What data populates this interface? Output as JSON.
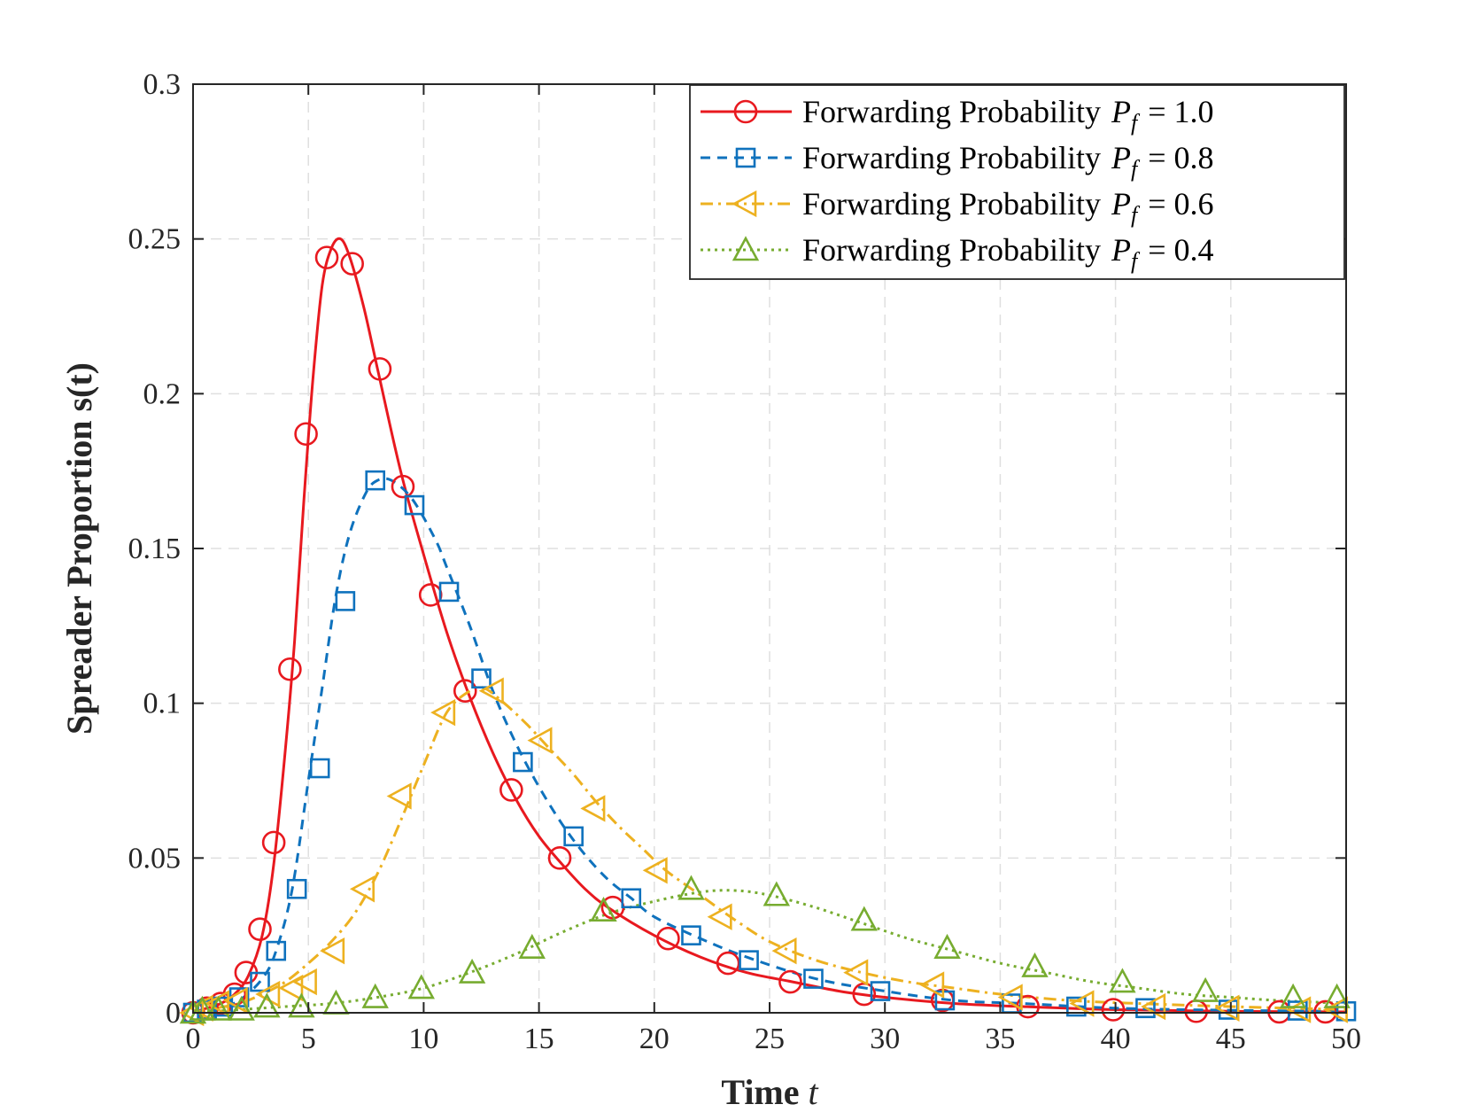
{
  "chart_data": {
    "type": "line",
    "xlabel": "Time",
    "xlabel_var": "t",
    "ylabel": "Spreader Proportion s(t)",
    "xlim": [
      0,
      50
    ],
    "ylim": [
      0,
      0.3
    ],
    "xticks": [
      0,
      5,
      10,
      15,
      20,
      25,
      30,
      35,
      40,
      45,
      50
    ],
    "yticks": [
      0,
      0.05,
      0.1,
      0.15,
      0.2,
      0.25,
      0.3
    ],
    "ytick_labels": [
      "0",
      "0.05",
      "0.1",
      "0.15",
      "0.2",
      "0.25",
      "0.3"
    ],
    "grid": true,
    "legend_position": "top-right",
    "series": [
      {
        "name": "Forwarding Probability P_f = 1.0",
        "legend_text": "Forwarding Probability",
        "legend_symbol": "P",
        "legend_subscript": "f",
        "legend_value": "= 1.0",
        "color": "#e8191f",
        "line": "solid",
        "marker": "circle",
        "curve": [
          [
            0,
            0
          ],
          [
            0.6,
            0.0015
          ],
          [
            1.2,
            0.003
          ],
          [
            1.8,
            0.006
          ],
          [
            2.4,
            0.012
          ],
          [
            3,
            0.025
          ],
          [
            3.5,
            0.048
          ],
          [
            4,
            0.085
          ],
          [
            4.4,
            0.12
          ],
          [
            4.8,
            0.165
          ],
          [
            5.2,
            0.205
          ],
          [
            5.6,
            0.235
          ],
          [
            6,
            0.247
          ],
          [
            6.4,
            0.25
          ],
          [
            6.8,
            0.244
          ],
          [
            7.4,
            0.228
          ],
          [
            8,
            0.208
          ],
          [
            9,
            0.175
          ],
          [
            10,
            0.148
          ],
          [
            11,
            0.123
          ],
          [
            12,
            0.102
          ],
          [
            13,
            0.084
          ],
          [
            14,
            0.069
          ],
          [
            15,
            0.057
          ],
          [
            16,
            0.048
          ],
          [
            17,
            0.04
          ],
          [
            18,
            0.034
          ],
          [
            20,
            0.025
          ],
          [
            22,
            0.018
          ],
          [
            24,
            0.013
          ],
          [
            26,
            0.01
          ],
          [
            28,
            0.007
          ],
          [
            30,
            0.005
          ],
          [
            33,
            0.003
          ],
          [
            36,
            0.002
          ],
          [
            40,
            0.001
          ],
          [
            45,
            0.0005
          ],
          [
            50,
            0.0003
          ]
        ],
        "markers": [
          [
            0,
            0
          ],
          [
            0.6,
            0.0015
          ],
          [
            1.2,
            0.003
          ],
          [
            1.8,
            0.006
          ],
          [
            2.3,
            0.013
          ],
          [
            2.9,
            0.027
          ],
          [
            3.5,
            0.055
          ],
          [
            4.2,
            0.111
          ],
          [
            4.9,
            0.187
          ],
          [
            5.8,
            0.244
          ],
          [
            6.9,
            0.242
          ],
          [
            8.1,
            0.208
          ],
          [
            9.1,
            0.17
          ],
          [
            10.3,
            0.135
          ],
          [
            11.8,
            0.104
          ],
          [
            13.8,
            0.072
          ],
          [
            15.9,
            0.05
          ],
          [
            18.2,
            0.034
          ],
          [
            20.6,
            0.024
          ],
          [
            23.2,
            0.016
          ],
          [
            25.9,
            0.01
          ],
          [
            29.1,
            0.006
          ],
          [
            32.5,
            0.004
          ],
          [
            36.2,
            0.002
          ],
          [
            39.9,
            0.001
          ],
          [
            43.5,
            0.0005
          ],
          [
            47.1,
            0.0003
          ],
          [
            49.1,
            0.0003
          ]
        ]
      },
      {
        "name": "Forwarding Probability P_f = 0.8",
        "legend_text": "Forwarding Probability",
        "legend_symbol": "P",
        "legend_subscript": "f",
        "legend_value": "= 0.8",
        "color": "#0f72bd",
        "line": "dashed",
        "marker": "square",
        "curve": [
          [
            0,
            0
          ],
          [
            1,
            0.001
          ],
          [
            2,
            0.004
          ],
          [
            3,
            0.011
          ],
          [
            3.6,
            0.02
          ],
          [
            4.3,
            0.04
          ],
          [
            5,
            0.075
          ],
          [
            5.6,
            0.105
          ],
          [
            6.2,
            0.135
          ],
          [
            6.8,
            0.155
          ],
          [
            7.5,
            0.168
          ],
          [
            8,
            0.172
          ],
          [
            8.6,
            0.172
          ],
          [
            9.5,
            0.166
          ],
          [
            10.5,
            0.153
          ],
          [
            11,
            0.144
          ],
          [
            12,
            0.125
          ],
          [
            13,
            0.104
          ],
          [
            14,
            0.087
          ],
          [
            15,
            0.073
          ],
          [
            16,
            0.061
          ],
          [
            17,
            0.051
          ],
          [
            18,
            0.043
          ],
          [
            19,
            0.037
          ],
          [
            20,
            0.031
          ],
          [
            22,
            0.024
          ],
          [
            24,
            0.018
          ],
          [
            27,
            0.011
          ],
          [
            30,
            0.007
          ],
          [
            33,
            0.004
          ],
          [
            36,
            0.003
          ],
          [
            40,
            0.0015
          ],
          [
            45,
            0.0008
          ],
          [
            50,
            0.0005
          ]
        ],
        "markers": [
          [
            0,
            0
          ],
          [
            0.6,
            0.001
          ],
          [
            1.3,
            0.002
          ],
          [
            2,
            0.005
          ],
          [
            2.9,
            0.01
          ],
          [
            3.6,
            0.02
          ],
          [
            4.5,
            0.04
          ],
          [
            5.5,
            0.079
          ],
          [
            6.6,
            0.133
          ],
          [
            7.9,
            0.172
          ],
          [
            9.6,
            0.164
          ],
          [
            11.1,
            0.136
          ],
          [
            12.5,
            0.108
          ],
          [
            14.3,
            0.081
          ],
          [
            16.5,
            0.057
          ],
          [
            19,
            0.037
          ],
          [
            21.6,
            0.025
          ],
          [
            24.1,
            0.017
          ],
          [
            26.9,
            0.011
          ],
          [
            29.8,
            0.007
          ],
          [
            32.6,
            0.004
          ],
          [
            35.5,
            0.003
          ],
          [
            38.3,
            0.002
          ],
          [
            41.3,
            0.0015
          ],
          [
            44.9,
            0.001
          ],
          [
            47.9,
            0.0007
          ],
          [
            50,
            0.0005
          ]
        ]
      },
      {
        "name": "Forwarding Probability P_f = 0.6",
        "legend_text": "Forwarding Probability",
        "legend_symbol": "P",
        "legend_subscript": "f",
        "legend_value": "= 0.6",
        "color": "#edb120",
        "line": "dashdot",
        "marker": "triangle-left",
        "curve": [
          [
            0,
            0
          ],
          [
            1,
            0.0015
          ],
          [
            2,
            0.003
          ],
          [
            3,
            0.006
          ],
          [
            4,
            0.01
          ],
          [
            5,
            0.016
          ],
          [
            6,
            0.023
          ],
          [
            7,
            0.032
          ],
          [
            8,
            0.045
          ],
          [
            9,
            0.062
          ],
          [
            10,
            0.08
          ],
          [
            11,
            0.097
          ],
          [
            12,
            0.104
          ],
          [
            12.6,
            0.105
          ],
          [
            13.5,
            0.1
          ],
          [
            14.5,
            0.093
          ],
          [
            15.5,
            0.085
          ],
          [
            16.5,
            0.077
          ],
          [
            17.5,
            0.068
          ],
          [
            18.5,
            0.06
          ],
          [
            19.5,
            0.053
          ],
          [
            20.5,
            0.046
          ],
          [
            22,
            0.038
          ],
          [
            23.5,
            0.03
          ],
          [
            25,
            0.023
          ],
          [
            27,
            0.017
          ],
          [
            29,
            0.013
          ],
          [
            31,
            0.01
          ],
          [
            33,
            0.008
          ],
          [
            35,
            0.006
          ],
          [
            38,
            0.004
          ],
          [
            41,
            0.003
          ],
          [
            45,
            0.002
          ],
          [
            50,
            0.001
          ]
        ],
        "markers": [
          [
            0,
            0
          ],
          [
            0.4,
            0.0015
          ],
          [
            1.1,
            0.003
          ],
          [
            1.9,
            0.004
          ],
          [
            3.3,
            0.006
          ],
          [
            4.3,
            0.008
          ],
          [
            4.9,
            0.01
          ],
          [
            6.1,
            0.02
          ],
          [
            7.4,
            0.04
          ],
          [
            9,
            0.07
          ],
          [
            10.9,
            0.097
          ],
          [
            13,
            0.104
          ],
          [
            15.1,
            0.088
          ],
          [
            17.4,
            0.066
          ],
          [
            20.1,
            0.046
          ],
          [
            22.9,
            0.031
          ],
          [
            25.7,
            0.02
          ],
          [
            28.8,
            0.013
          ],
          [
            32.1,
            0.009
          ],
          [
            35.5,
            0.005
          ],
          [
            38.6,
            0.003
          ],
          [
            41.7,
            0.002
          ],
          [
            44.9,
            0.0015
          ],
          [
            48,
            0.001
          ],
          [
            49.6,
            0.001
          ]
        ]
      },
      {
        "name": "Forwarding Probability P_f = 0.4",
        "legend_text": "Forwarding Probability",
        "legend_symbol": "P",
        "legend_subscript": "f",
        "legend_value": "= 0.4",
        "color": "#77ac30",
        "line": "dotted",
        "marker": "triangle-up",
        "curve": [
          [
            0,
            0
          ],
          [
            2,
            0.001
          ],
          [
            4,
            0.002
          ],
          [
            6,
            0.003
          ],
          [
            8,
            0.005
          ],
          [
            10,
            0.008
          ],
          [
            12,
            0.013
          ],
          [
            14,
            0.019
          ],
          [
            16,
            0.026
          ],
          [
            18,
            0.032
          ],
          [
            20,
            0.036
          ],
          [
            22,
            0.039
          ],
          [
            23.5,
            0.0395
          ],
          [
            25,
            0.038
          ],
          [
            27,
            0.034
          ],
          [
            29,
            0.029
          ],
          [
            31,
            0.024
          ],
          [
            33,
            0.02
          ],
          [
            35,
            0.016
          ],
          [
            37,
            0.013
          ],
          [
            39,
            0.01
          ],
          [
            41,
            0.008
          ],
          [
            43,
            0.006
          ],
          [
            45,
            0.005
          ],
          [
            47,
            0.004
          ],
          [
            50,
            0.003
          ]
        ],
        "markers": [
          [
            0,
            0
          ],
          [
            0.4,
            0.001
          ],
          [
            1.1,
            0.001
          ],
          [
            2.1,
            0.001
          ],
          [
            3.2,
            0.002
          ],
          [
            4.7,
            0.002
          ],
          [
            6.2,
            0.003
          ],
          [
            7.9,
            0.005
          ],
          [
            9.9,
            0.008
          ],
          [
            12.1,
            0.013
          ],
          [
            14.7,
            0.021
          ],
          [
            17.8,
            0.033
          ],
          [
            21.6,
            0.04
          ],
          [
            25.3,
            0.038
          ],
          [
            29.1,
            0.03
          ],
          [
            32.7,
            0.021
          ],
          [
            36.5,
            0.015
          ],
          [
            40.3,
            0.01
          ],
          [
            43.9,
            0.007
          ],
          [
            47.7,
            0.005
          ],
          [
            49.6,
            0.005
          ]
        ]
      }
    ]
  }
}
